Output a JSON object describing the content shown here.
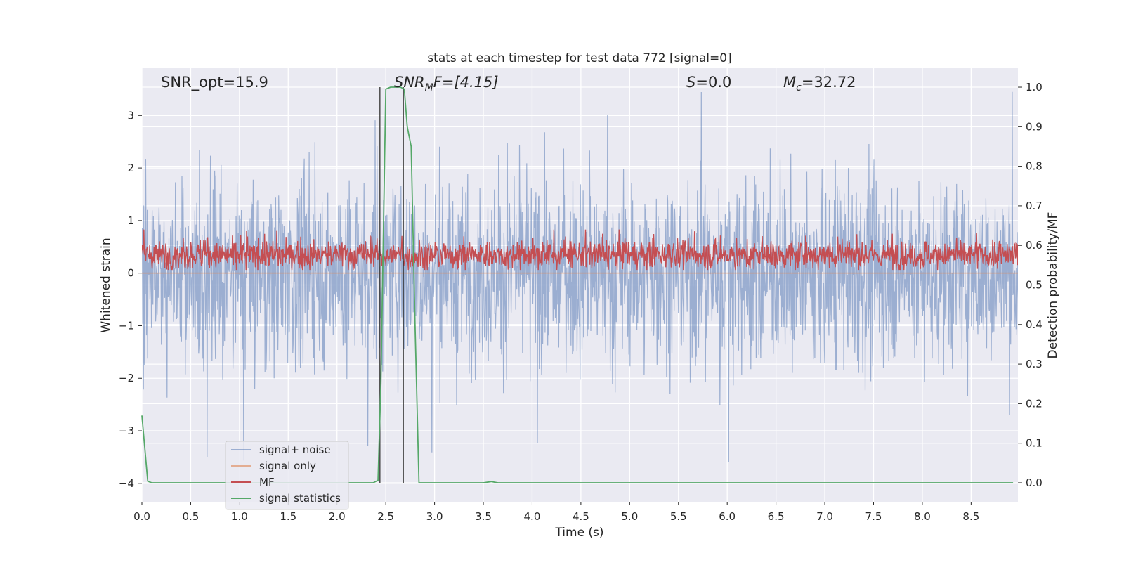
{
  "chart_data": {
    "type": "line",
    "title": "stats at each timestep for test data 772 [signal=0]",
    "xlabel": "Time (s)",
    "ylabel": "Whitened strain",
    "ylabel_right": "Detection probability/MF",
    "xlim": [
      0.0,
      8.98
    ],
    "ylim": [
      -4.35,
      3.9
    ],
    "ylim_right": [
      -0.048,
      1.048
    ],
    "x_ticks": [
      0.0,
      0.5,
      1.0,
      1.5,
      2.0,
      2.5,
      3.0,
      3.5,
      4.0,
      4.5,
      5.0,
      5.5,
      6.0,
      6.5,
      7.0,
      7.5,
      8.0,
      8.5
    ],
    "x_tick_labels": [
      "0.0",
      "0.5",
      "1.0",
      "1.5",
      "2.0",
      "2.5",
      "3.0",
      "3.5",
      "4.0",
      "4.5",
      "5.0",
      "5.5",
      "6.0",
      "6.5",
      "7.0",
      "7.5",
      "8.0",
      "8.5"
    ],
    "y_ticks": [
      3,
      2,
      1,
      0,
      -1,
      -2,
      -3,
      -4
    ],
    "y_tick_labels": [
      "3",
      "2",
      "1",
      "0",
      "−1",
      "−2",
      "−3",
      "−4"
    ],
    "y_right_ticks": [
      1.0,
      0.9,
      0.8,
      0.7,
      0.6,
      0.5,
      0.4,
      0.3,
      0.2,
      0.1,
      0.0
    ],
    "y_right_tick_labels": [
      "1.0",
      "0.9",
      "0.8",
      "0.7",
      "0.6",
      "0.5",
      "0.4",
      "0.3",
      "0.2",
      "0.1",
      "0.0"
    ],
    "grid": true,
    "legend_position": "lower-left",
    "annotations": {
      "snr_opt": "SNR_opt=15.9",
      "snr_mf_main": "SNR",
      "snr_mf_sub": "M",
      "snr_mf_rest": "F=[4.15]",
      "s_main": "S",
      "s_rest": "=0.0",
      "mc_main": "M",
      "mc_sub": "c",
      "mc_rest": "=32.72"
    },
    "vertical_lines_x": [
      2.44,
      2.68
    ],
    "series": [
      {
        "name": "signal+ noise",
        "color": "#4c72b0",
        "axis": "left",
        "kind": "noise",
        "sigma": 0.85,
        "x_range": [
          0.0,
          8.98
        ]
      },
      {
        "name": "signal only",
        "color": "#dd8452",
        "axis": "left",
        "kind": "constant",
        "value": 0.0,
        "x_range": [
          0.0,
          8.98
        ]
      },
      {
        "name": "MF",
        "color": "#c44e52",
        "axis": "right",
        "kind": "noise",
        "mean": 0.575,
        "sigma": 0.018,
        "x_range": [
          0.0,
          8.98
        ]
      },
      {
        "name": "signal statistics",
        "color": "#55a868",
        "axis": "right",
        "kind": "points",
        "x": [
          0.0,
          0.06,
          0.1,
          0.5,
          1.0,
          1.5,
          2.0,
          2.37,
          2.42,
          2.45,
          2.47,
          2.5,
          2.55,
          2.6,
          2.65,
          2.69,
          2.72,
          2.76,
          2.8,
          2.84,
          2.88,
          3.0,
          3.5,
          3.58,
          3.65,
          4.0,
          5.0,
          6.0,
          7.0,
          8.0,
          8.93
        ],
        "y": [
          0.17,
          0.004,
          0.0,
          0.0,
          0.0,
          0.0,
          0.0,
          0.0,
          0.006,
          0.25,
          0.55,
          0.995,
          1.0,
          1.0,
          1.0,
          0.995,
          0.9,
          0.85,
          0.4,
          0.0,
          0.0,
          0.0,
          0.0,
          0.003,
          0.0,
          0.0,
          0.0,
          0.0,
          0.0,
          0.0,
          0.0
        ]
      }
    ]
  }
}
